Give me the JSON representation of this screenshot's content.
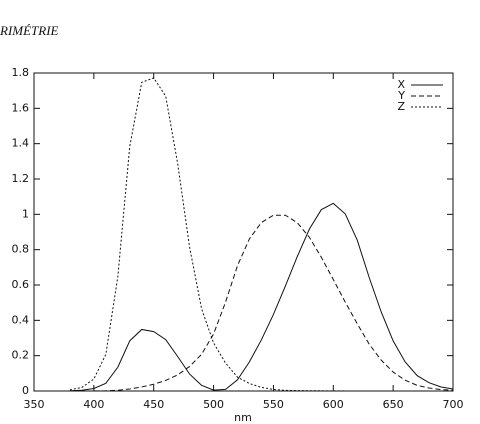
{
  "chart_data": {
    "type": "line",
    "title": "RIMÉTRIE",
    "xlabel": "nm",
    "x": [
      380,
      390,
      400,
      410,
      420,
      430,
      440,
      450,
      460,
      470,
      480,
      490,
      500,
      510,
      520,
      530,
      540,
      550,
      560,
      570,
      580,
      590,
      600,
      610,
      620,
      630,
      640,
      650,
      660,
      670,
      680,
      690,
      700
    ],
    "series": [
      {
        "name": "X",
        "color": "#111111",
        "dash": "solid",
        "values": [
          0.0014,
          0.0042,
          0.0143,
          0.0435,
          0.1344,
          0.2839,
          0.3483,
          0.3362,
          0.2908,
          0.1954,
          0.0956,
          0.032,
          0.0049,
          0.0093,
          0.0633,
          0.1655,
          0.2904,
          0.4334,
          0.5945,
          0.7621,
          0.9163,
          1.0263,
          1.0622,
          1.0026,
          0.8544,
          0.6424,
          0.4479,
          0.2835,
          0.1649,
          0.0874,
          0.0468,
          0.0227,
          0.0114
        ]
      },
      {
        "name": "Y",
        "color": "#111111",
        "dash": "dashed",
        "values": [
          0,
          0.0001,
          0.0004,
          0.0012,
          0.004,
          0.0116,
          0.023,
          0.038,
          0.06,
          0.091,
          0.139,
          0.208,
          0.323,
          0.503,
          0.71,
          0.862,
          0.954,
          0.995,
          0.995,
          0.952,
          0.87,
          0.757,
          0.631,
          0.503,
          0.381,
          0.265,
          0.175,
          0.107,
          0.061,
          0.032,
          0.017,
          0.0082,
          0.0041
        ]
      },
      {
        "name": "Z",
        "color": "#111111",
        "dash": "dotted",
        "values": [
          0.0065,
          0.0201,
          0.0679,
          0.2074,
          0.6456,
          1.3856,
          1.7471,
          1.7721,
          1.6692,
          1.2876,
          0.813,
          0.4652,
          0.272,
          0.1582,
          0.0782,
          0.0422,
          0.0203,
          0.0087,
          0.0039,
          0.0021,
          0.0017,
          0.0011,
          0.0008,
          0.0003,
          0.0002,
          0,
          0,
          0,
          0,
          0,
          0,
          0,
          0
        ]
      }
    ],
    "xlim": [
      350,
      700
    ],
    "xticks": [
      350,
      400,
      450,
      500,
      550,
      600,
      650,
      700
    ],
    "ylim": [
      0,
      1.8
    ],
    "yticks": [
      0,
      0.2,
      0.4,
      0.6,
      0.8,
      1,
      1.2,
      1.4,
      1.6,
      1.8
    ],
    "legend": "top-right"
  }
}
